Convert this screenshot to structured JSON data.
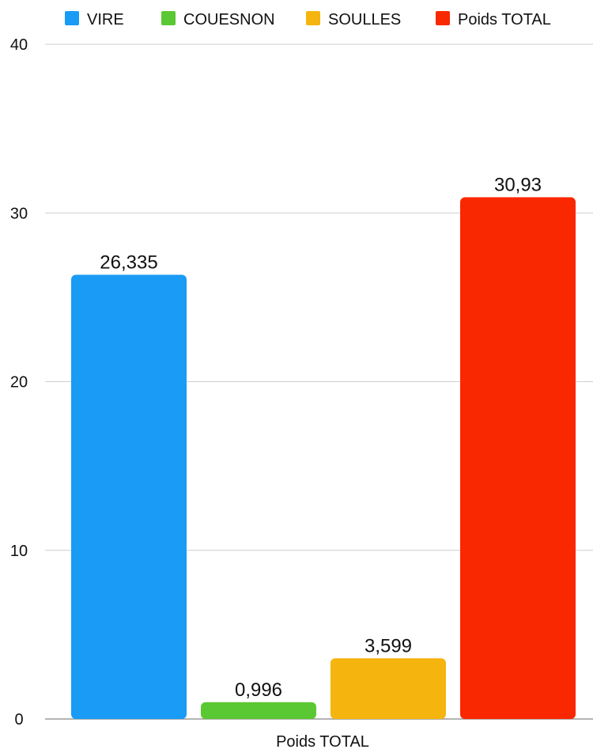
{
  "chart_data": {
    "type": "bar",
    "categories": [
      "Poids TOTAL"
    ],
    "series": [
      {
        "name": "VIRE",
        "color": "#1a9bf5",
        "values": [
          26.335
        ],
        "label": "26,335"
      },
      {
        "name": "COUESNON",
        "color": "#5ac832",
        "values": [
          0.996
        ],
        "label": "0,996"
      },
      {
        "name": "SOULLES",
        "color": "#f6b40e",
        "values": [
          3.599
        ],
        "label": "3,599"
      },
      {
        "name": "Poids TOTAL",
        "color": "#fa2800",
        "values": [
          30.93
        ],
        "label": "30,93"
      }
    ],
    "yticks": [
      "0",
      "10",
      "20",
      "30",
      "40"
    ],
    "ylim": [
      0,
      40
    ],
    "grid": true,
    "legend": "top"
  }
}
